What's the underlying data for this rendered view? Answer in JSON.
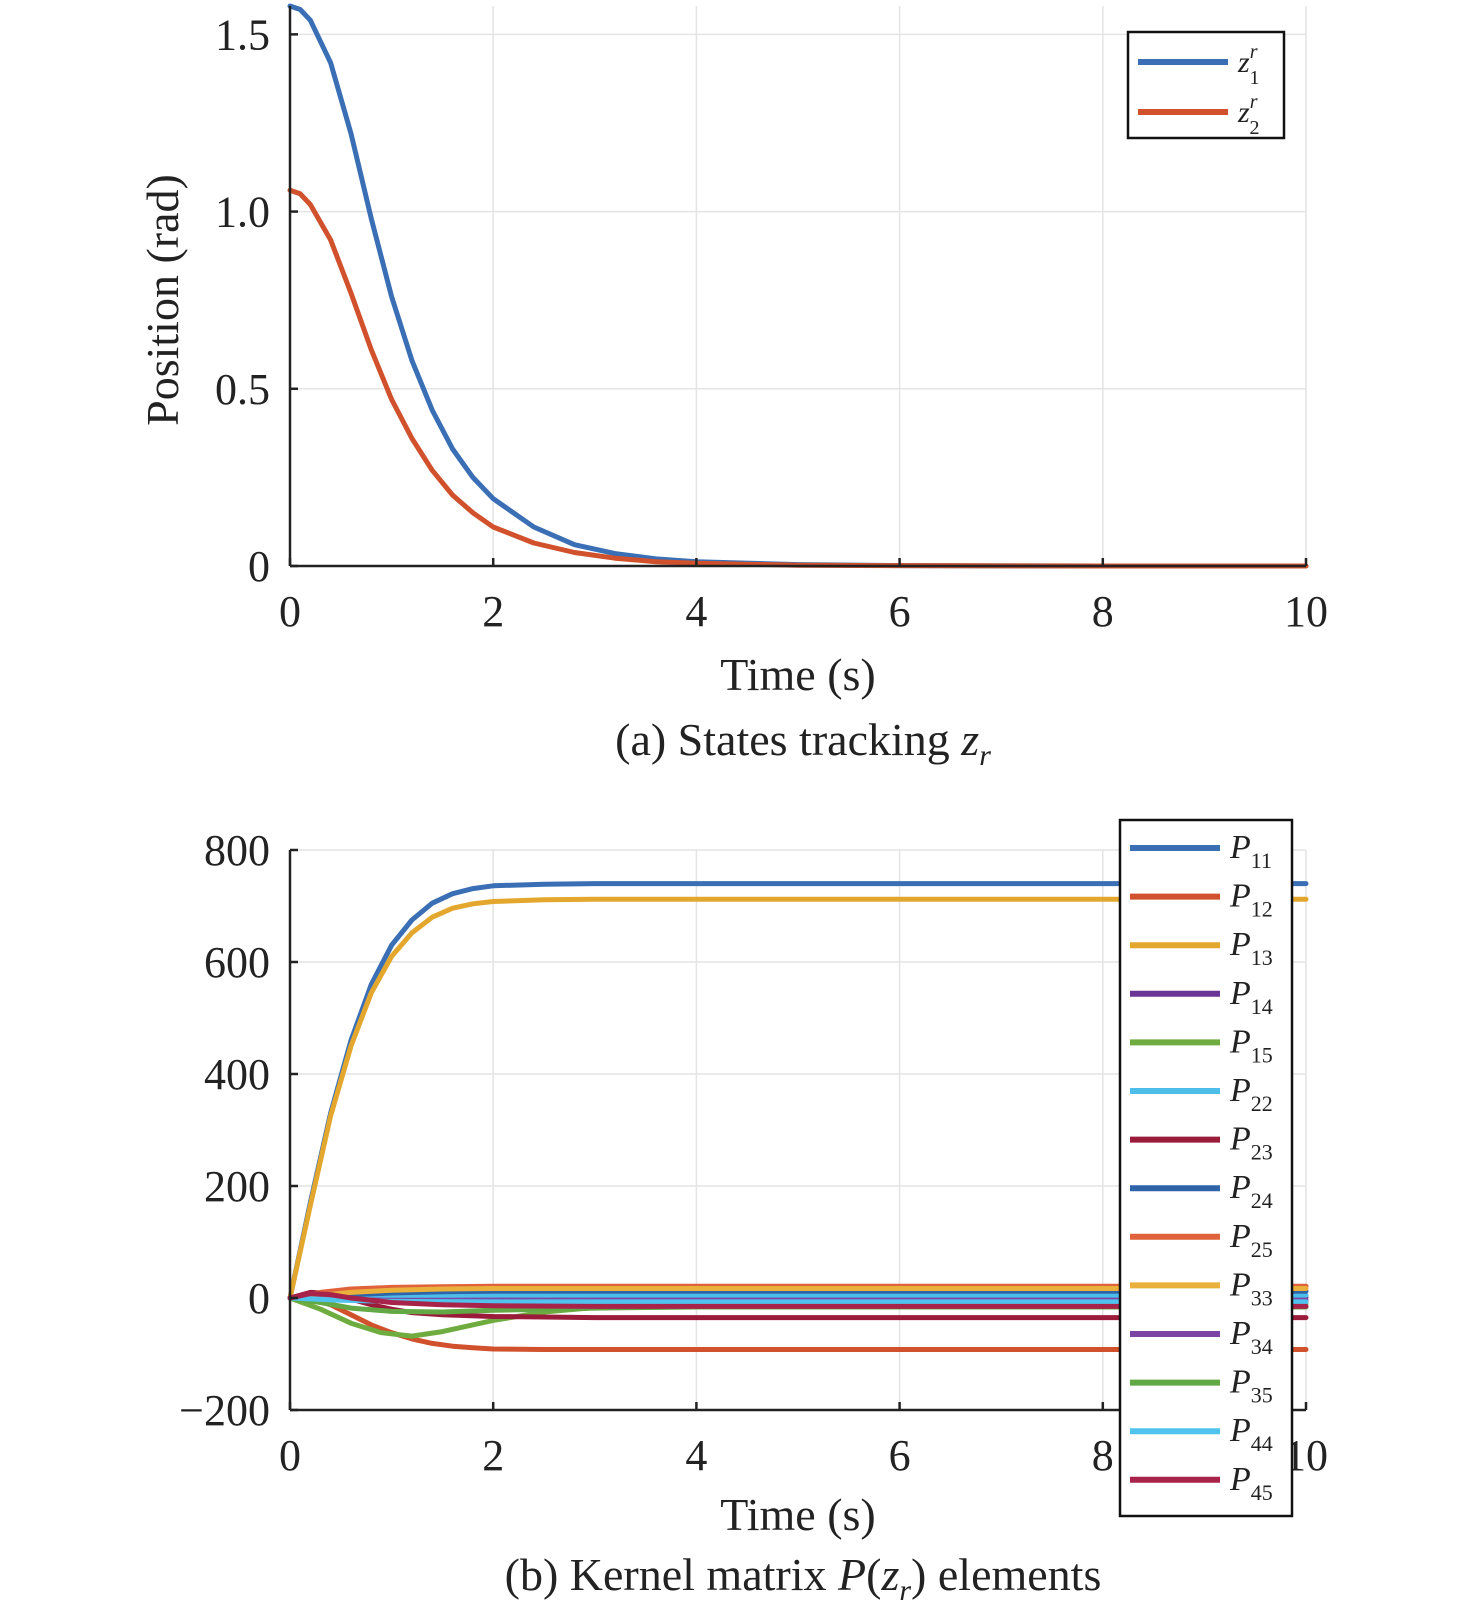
{
  "chart_data": [
    {
      "type": "line",
      "caption": "(a) States tracking z",
      "caption_sub": "r",
      "xlabel": "Time (s)",
      "ylabel": "Position (rad)",
      "xlim": [
        0,
        10
      ],
      "ylim": [
        0,
        1.58
      ],
      "xticks": [
        "0",
        "2",
        "4",
        "6",
        "8",
        "10"
      ],
      "xtick_values": [
        0,
        2,
        4,
        6,
        8,
        10
      ],
      "yticks": [
        "0",
        "0.5",
        "1.0",
        "1.5"
      ],
      "ytick_values": [
        0,
        0.5,
        1.0,
        1.5
      ],
      "grid": true,
      "legend_position": "top-right",
      "series": [
        {
          "name": "z",
          "name_sup": "r",
          "name_sub": "1",
          "color": "#3a6fb5",
          "x": [
            0,
            0.1,
            0.2,
            0.4,
            0.6,
            0.8,
            1.0,
            1.2,
            1.4,
            1.6,
            1.8,
            2.0,
            2.4,
            2.8,
            3.2,
            3.6,
            4.0,
            5.0,
            6.0,
            8.0,
            10.0
          ],
          "y": [
            1.58,
            1.57,
            1.54,
            1.42,
            1.22,
            0.98,
            0.76,
            0.58,
            0.44,
            0.33,
            0.25,
            0.19,
            0.11,
            0.06,
            0.035,
            0.02,
            0.012,
            0.004,
            0.001,
            0.0,
            0.0
          ]
        },
        {
          "name": "z",
          "name_sup": "r",
          "name_sub": "2",
          "color": "#d1512c",
          "x": [
            0,
            0.1,
            0.2,
            0.4,
            0.6,
            0.8,
            1.0,
            1.2,
            1.4,
            1.6,
            1.8,
            2.0,
            2.4,
            2.8,
            3.2,
            3.6,
            4.0,
            5.0,
            6.0,
            8.0,
            10.0
          ],
          "y": [
            1.06,
            1.05,
            1.02,
            0.92,
            0.77,
            0.61,
            0.47,
            0.36,
            0.27,
            0.2,
            0.15,
            0.11,
            0.065,
            0.038,
            0.022,
            0.012,
            0.008,
            0.002,
            0.001,
            0.0,
            0.0
          ]
        }
      ]
    },
    {
      "type": "line",
      "caption": "(b) Kernel matrix P(z",
      "caption_sub": "r",
      "caption_end": ") elements",
      "xlabel": "Time (s)",
      "ylabel": "",
      "xlim": [
        0,
        10
      ],
      "ylim": [
        -200,
        800
      ],
      "xticks": [
        "0",
        "2",
        "4",
        "6",
        "8",
        "10"
      ],
      "xtick_values": [
        0,
        2,
        4,
        6,
        8,
        10
      ],
      "yticks": [
        "−200",
        "0",
        "200",
        "400",
        "600",
        "800"
      ],
      "ytick_values": [
        -200,
        0,
        200,
        400,
        600,
        800
      ],
      "grid": true,
      "legend_position": "right",
      "series": [
        {
          "name": "P",
          "name_sub": "11",
          "color": "#3a6fb5",
          "x": [
            0,
            0.2,
            0.4,
            0.6,
            0.8,
            1.0,
            1.2,
            1.4,
            1.6,
            1.8,
            2.0,
            2.5,
            3.0,
            4.0,
            10.0
          ],
          "y": [
            0,
            170,
            330,
            460,
            560,
            630,
            675,
            705,
            722,
            731,
            736,
            739,
            740,
            740,
            740
          ]
        },
        {
          "name": "P",
          "name_sub": "12",
          "color": "#d1512c",
          "x": [
            0,
            0.2,
            0.4,
            0.6,
            0.8,
            1.0,
            1.2,
            1.4,
            1.6,
            1.8,
            2.0,
            2.5,
            3.0,
            4.0,
            10.0
          ],
          "y": [
            0,
            0,
            -12,
            -30,
            -48,
            -62,
            -73,
            -81,
            -86,
            -89,
            -91,
            -92,
            -92,
            -92,
            -92
          ]
        },
        {
          "name": "P",
          "name_sub": "13",
          "color": "#e4a72e",
          "x": [
            0,
            0.2,
            0.4,
            0.6,
            0.8,
            1.0,
            1.2,
            1.4,
            1.6,
            1.8,
            2.0,
            2.5,
            3.0,
            4.0,
            10.0
          ],
          "y": [
            0,
            165,
            325,
            450,
            545,
            610,
            652,
            680,
            696,
            704,
            708,
            711,
            712,
            712,
            712
          ]
        },
        {
          "name": "P",
          "name_sub": "14",
          "color": "#6a3594",
          "x": [
            0,
            0.3,
            0.6,
            1.0,
            1.5,
            2.0,
            3.0,
            4.0,
            10.0
          ],
          "y": [
            0,
            5,
            4,
            2,
            1,
            1,
            1,
            1,
            1
          ]
        },
        {
          "name": "P",
          "name_sub": "15",
          "color": "#6fac3f",
          "x": [
            0,
            0.3,
            0.6,
            0.9,
            1.2,
            1.5,
            2.0,
            2.5,
            3.0,
            4.0,
            5.0,
            10.0
          ],
          "y": [
            0,
            -20,
            -45,
            -62,
            -68,
            -60,
            -40,
            -25,
            -17,
            -12,
            -10,
            -10
          ]
        },
        {
          "name": "P",
          "name_sub": "22",
          "color": "#4dbeea",
          "x": [
            0,
            0.5,
            1.0,
            2.0,
            3.0,
            4.0,
            10.0
          ],
          "y": [
            0,
            3,
            4,
            5,
            5,
            5,
            5
          ]
        },
        {
          "name": "P",
          "name_sub": "23",
          "color": "#9b1b3a",
          "x": [
            0,
            0.2,
            0.4,
            0.6,
            0.8,
            1.0,
            1.2,
            1.5,
            2.0,
            2.5,
            3.0,
            4.0,
            10.0
          ],
          "y": [
            0,
            10,
            8,
            -2,
            -12,
            -20,
            -26,
            -30,
            -33,
            -34,
            -35,
            -35,
            -35
          ]
        },
        {
          "name": "P",
          "name_sub": "24",
          "color": "#2f64a8",
          "x": [
            0,
            0.5,
            1.0,
            1.5,
            2.0,
            3.0,
            4.0,
            10.0
          ],
          "y": [
            0,
            5,
            9,
            11,
            12,
            12,
            12,
            12
          ]
        },
        {
          "name": "P",
          "name_sub": "25",
          "color": "#e0623a",
          "x": [
            0,
            0.3,
            0.6,
            1.0,
            1.5,
            2.0,
            3.0,
            4.0,
            10.0
          ],
          "y": [
            0,
            10,
            16,
            19,
            20,
            21,
            21,
            21,
            21
          ]
        },
        {
          "name": "P",
          "name_sub": "33",
          "color": "#eab03c",
          "x": [
            0,
            0.3,
            0.6,
            1.0,
            1.5,
            2.0,
            3.0,
            4.0,
            10.0
          ],
          "y": [
            0,
            5,
            10,
            14,
            16,
            17,
            17,
            17,
            17
          ]
        },
        {
          "name": "P",
          "name_sub": "34",
          "color": "#7c44a4",
          "x": [
            0,
            0.3,
            0.6,
            1.0,
            2.0,
            4.0,
            10.0
          ],
          "y": [
            0,
            -2,
            -3,
            -4,
            -4,
            -4,
            -4
          ]
        },
        {
          "name": "P",
          "name_sub": "35",
          "color": "#62a844",
          "x": [
            0,
            0.3,
            0.6,
            1.0,
            1.5,
            2.0,
            3.0,
            4.0,
            10.0
          ],
          "y": [
            0,
            -8,
            -18,
            -24,
            -25,
            -22,
            -18,
            -16,
            -16
          ]
        },
        {
          "name": "P",
          "name_sub": "44",
          "color": "#4fc3ee",
          "x": [
            0,
            0.5,
            1.0,
            2.0,
            3.0,
            4.0,
            10.0
          ],
          "y": [
            0,
            -4,
            -6,
            -7,
            -7,
            -7,
            -7
          ]
        },
        {
          "name": "P",
          "name_sub": "45",
          "color": "#a8234a",
          "x": [
            0,
            0.2,
            0.4,
            0.6,
            1.0,
            1.5,
            2.0,
            3.0,
            4.0,
            10.0
          ],
          "y": [
            0,
            8,
            6,
            0,
            -8,
            -12,
            -14,
            -15,
            -15,
            -15
          ]
        }
      ]
    }
  ]
}
